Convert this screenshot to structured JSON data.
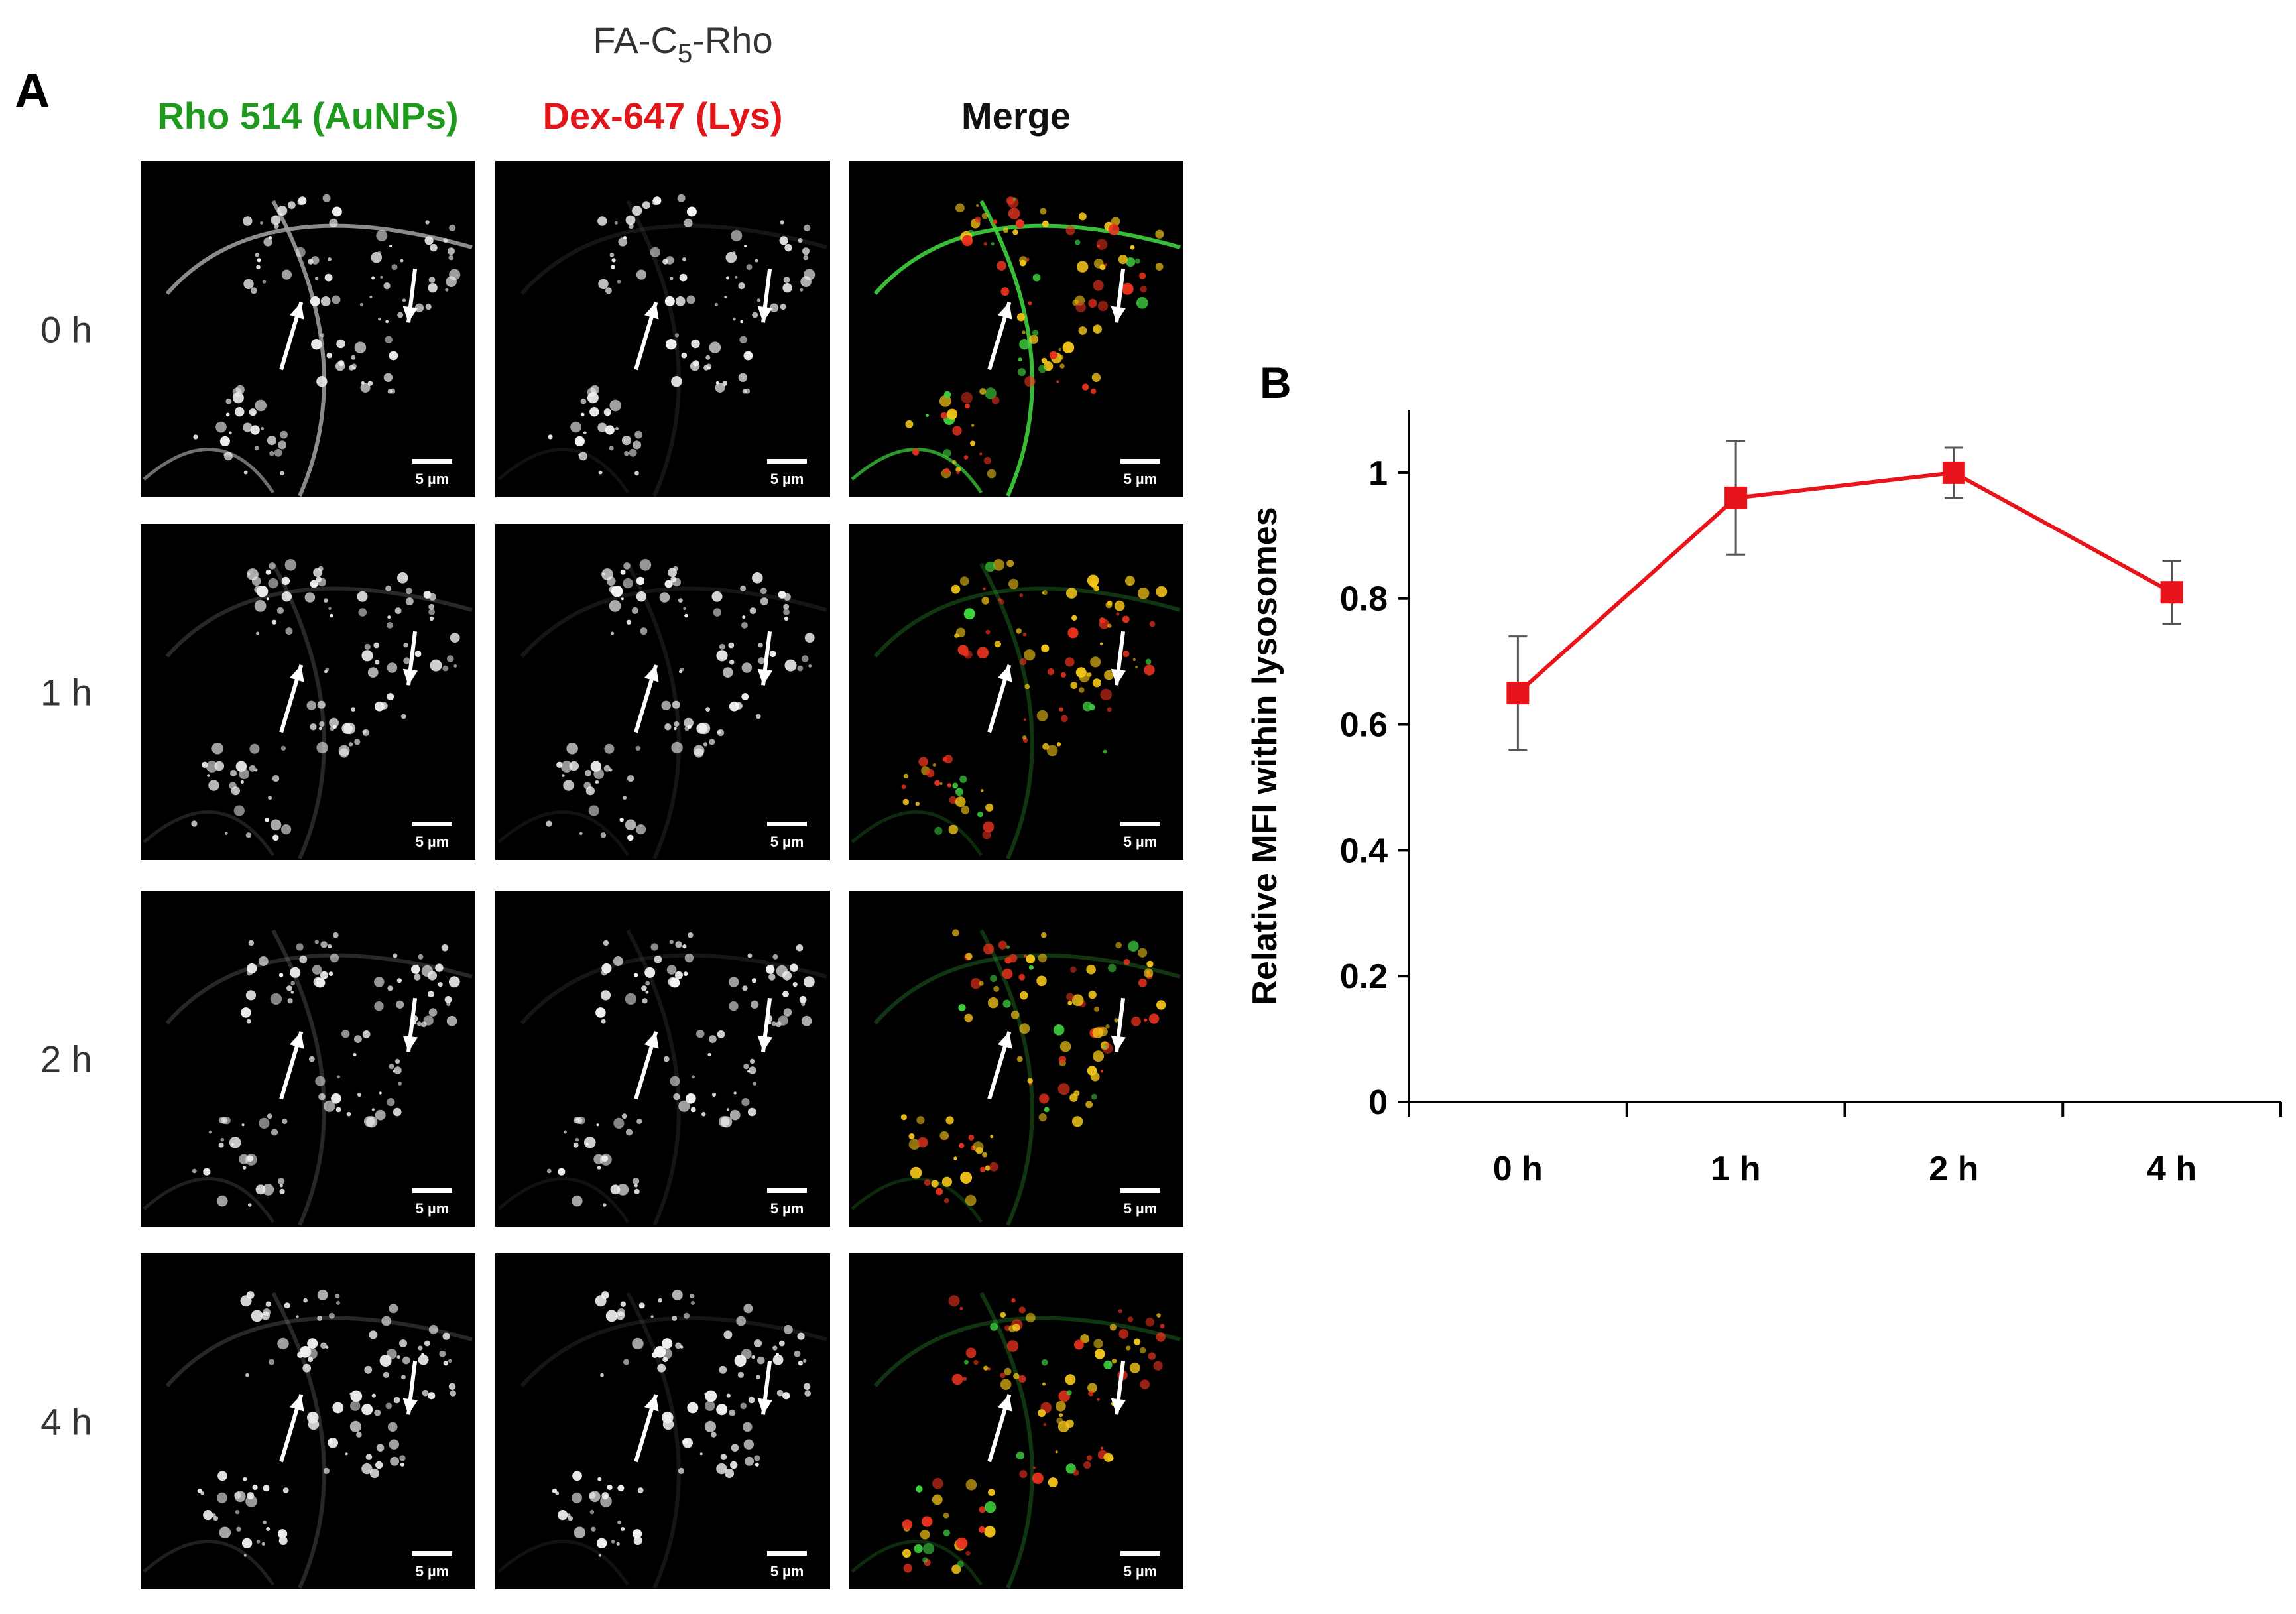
{
  "panel_a": {
    "letter": "A",
    "title_prefix": "FA-C",
    "title_subscript": "5",
    "title_suffix": "-Rho",
    "columns": [
      {
        "label": "Rho 514 (AuNPs)",
        "color": "#1f9a1f"
      },
      {
        "label": "Dex-647 (Lys)",
        "color": "#e0161b"
      },
      {
        "label": "Merge",
        "color": "#111111"
      }
    ],
    "rows": [
      "0 h",
      "1 h",
      "2 h",
      "4 h"
    ],
    "scale_bar_label": "5 µm",
    "channel_colors": {
      "green": "#3fd23f",
      "red": "#e8321e",
      "yellow": "#f2c418",
      "gray": "#eeeeee"
    }
  },
  "panel_b": {
    "letter": "B",
    "accent_color": "#e8141b"
  },
  "chart_data": {
    "type": "line",
    "title": "",
    "xlabel": "",
    "ylabel": "Relative MFI within lysosomes",
    "categories": [
      "0 h",
      "1 h",
      "2 h",
      "4 h"
    ],
    "series": [
      {
        "values": [
          0.65,
          0.96,
          1.0,
          0.81
        ],
        "error": [
          0.09,
          0.09,
          0.04,
          0.05
        ]
      }
    ],
    "ylim": [
      0,
      1.1
    ],
    "yticks": [
      0,
      0.2,
      0.4,
      0.6,
      0.8,
      1
    ],
    "ytick_labels": [
      "0",
      "0.2",
      "0.4",
      "0.6",
      "0.8",
      "1"
    ],
    "grid": false,
    "legend": "none"
  }
}
